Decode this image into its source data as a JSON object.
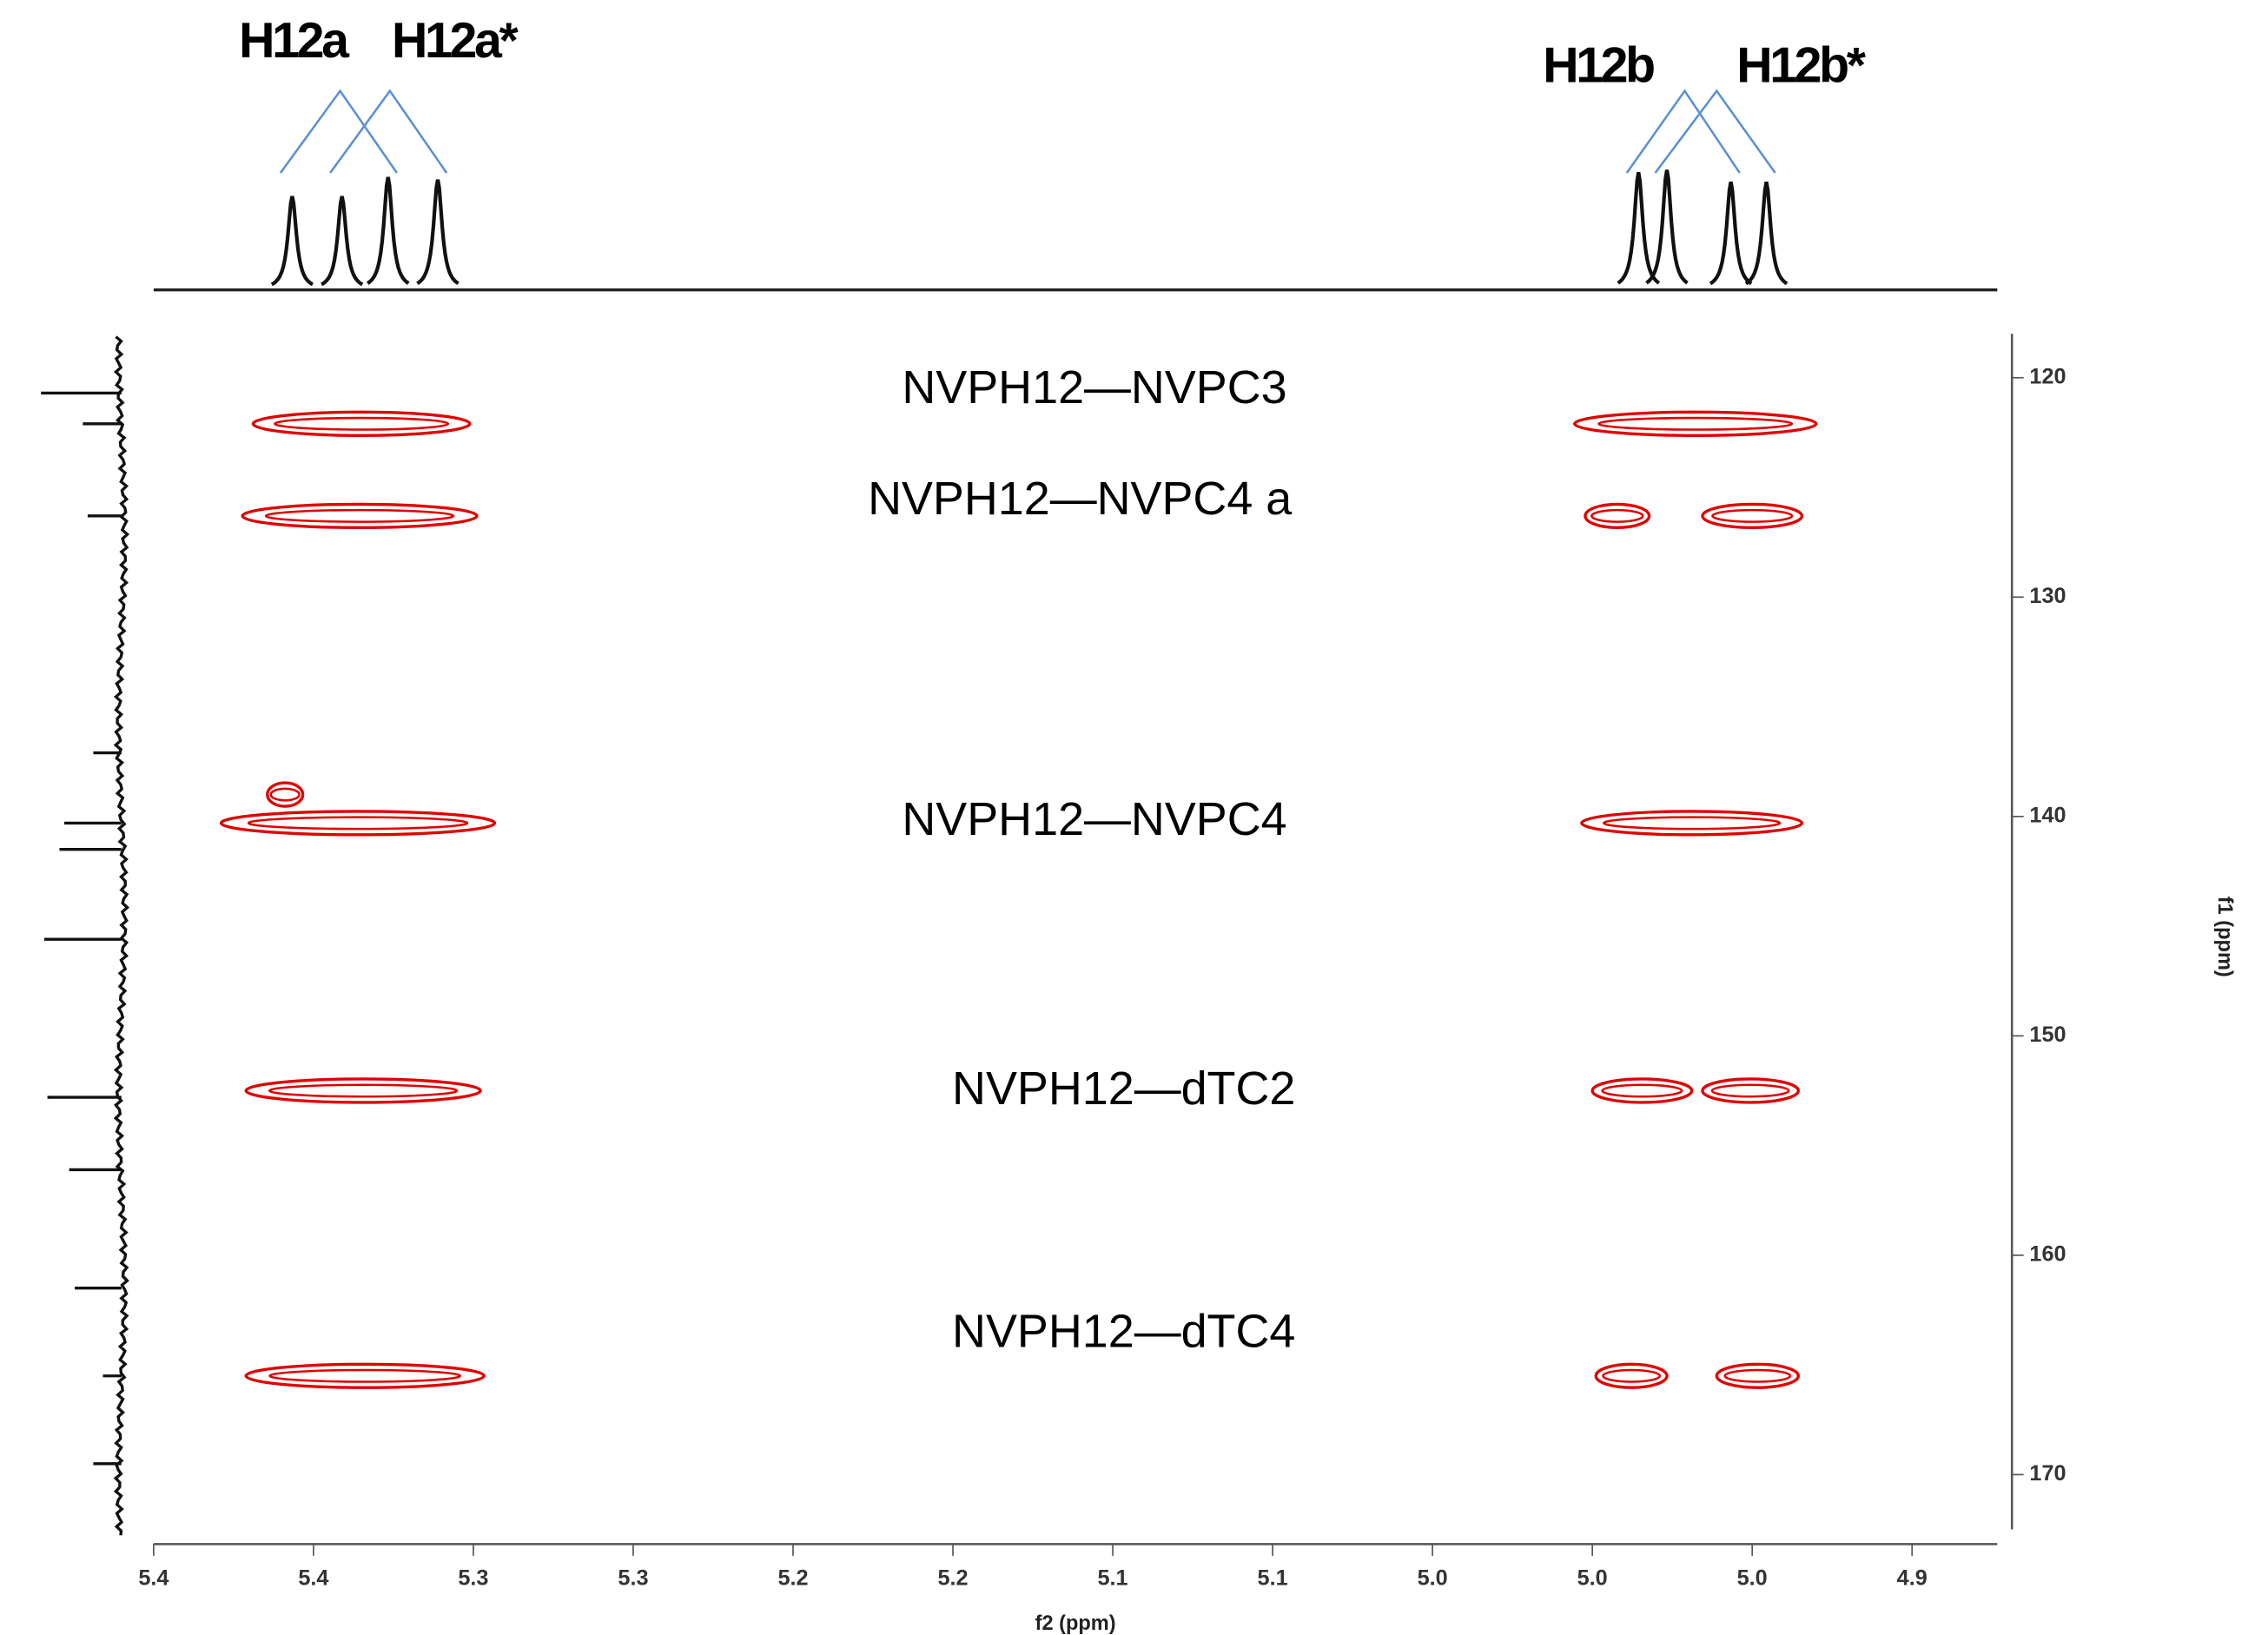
{
  "chart_data": {
    "type": "contour",
    "x_label": "f2 (ppm)",
    "y_label": "f1 (ppm)",
    "xlim": [
      5.405,
      4.886
    ],
    "ylim": [
      118,
      172.5
    ],
    "xticks": [
      {
        "value": 5.405,
        "label": "5.4"
      },
      {
        "value": 5.36,
        "label": "5.4"
      },
      {
        "value": 5.315,
        "label": "5.3"
      },
      {
        "value": 5.27,
        "label": "5.3"
      },
      {
        "value": 5.225,
        "label": "5.2"
      },
      {
        "value": 5.18,
        "label": "5.2"
      },
      {
        "value": 5.135,
        "label": "5.1"
      },
      {
        "value": 5.09,
        "label": "5.1"
      },
      {
        "value": 5.045,
        "label": "5.0"
      },
      {
        "value": 5.0,
        "label": "5.0"
      },
      {
        "value": 4.955,
        "label": "5.0"
      },
      {
        "value": 4.91,
        "label": "4.9"
      }
    ],
    "yticks": [
      120,
      130,
      140,
      150,
      160,
      170
    ],
    "color": "#e00000",
    "peaks": [
      {
        "x": [
          5.377,
          5.316
        ],
        "y": 122.1
      },
      {
        "x": [
          5.005,
          4.937
        ],
        "y": 122.1
      },
      {
        "x": [
          5.38,
          5.314
        ],
        "y": 126.3
      },
      {
        "x": [
          5.002,
          4.984
        ],
        "y": 126.3
      },
      {
        "x": [
          4.969,
          4.941
        ],
        "y": 126.3
      },
      {
        "x": [
          5.373,
          5.363
        ],
        "y": 139.0
      },
      {
        "x": [
          5.386,
          5.309
        ],
        "y": 140.3
      },
      {
        "x": [
          5.003,
          4.941
        ],
        "y": 140.3
      },
      {
        "x": [
          5.379,
          5.313
        ],
        "y": 152.5
      },
      {
        "x": [
          5.0,
          4.972
        ],
        "y": 152.5
      },
      {
        "x": [
          4.969,
          4.942
        ],
        "y": 152.5
      },
      {
        "x": [
          5.379,
          5.312
        ],
        "y": 165.5
      },
      {
        "x": [
          4.999,
          4.979
        ],
        "y": 165.5
      },
      {
        "x": [
          4.965,
          4.942
        ],
        "y": 165.5
      }
    ],
    "annotations": [
      "NVPH12—NVPC3",
      "NVPH12—NVPC4 a",
      "NVPH12—NVPC4",
      "NVPH12—dTC2",
      "NVPH12—dTC4"
    ],
    "top_projection": {
      "x": [
        5.366,
        5.352,
        5.339,
        5.325,
        4.987,
        4.979,
        4.961,
        4.951
      ],
      "intensities": [
        78,
        78,
        94,
        92,
        98,
        100,
        90,
        90
      ],
      "labels": [
        "H12a",
        "H12a*",
        "H12b",
        "H12b*"
      ]
    },
    "left_projection": {
      "y": [
        120.7,
        122.1,
        126.3,
        137.1,
        140.3,
        141.5,
        145.6,
        152.8,
        156.1,
        161.5,
        165.5,
        169.5
      ],
      "intensities": [
        100,
        48,
        42,
        35,
        71,
        77,
        96,
        92,
        65,
        58,
        23,
        35
      ]
    }
  }
}
